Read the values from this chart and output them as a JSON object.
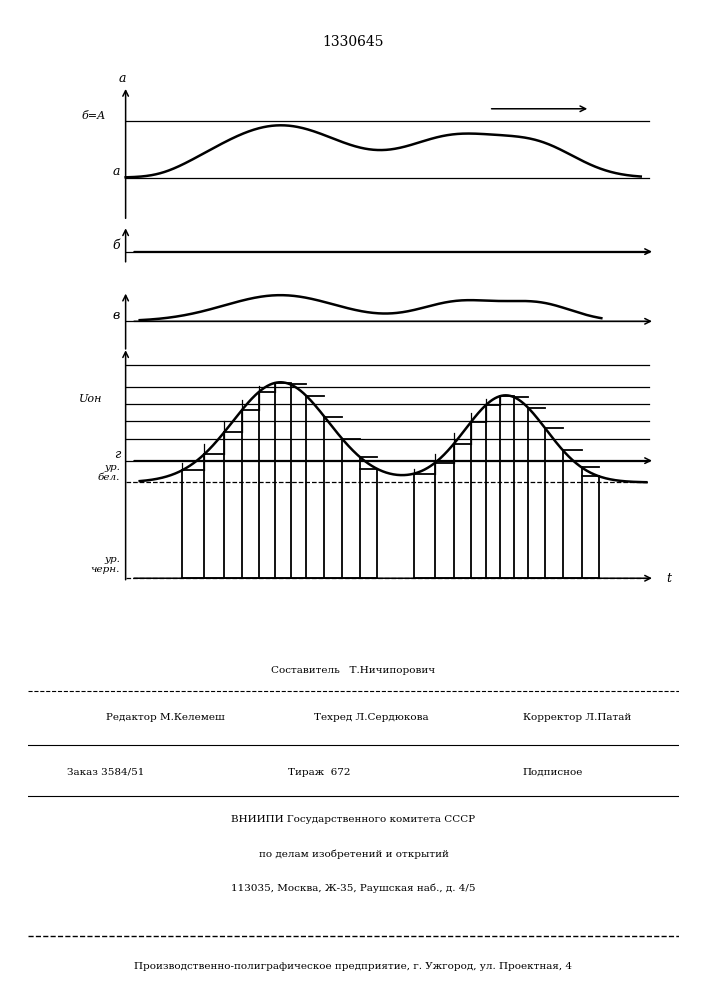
{
  "title": "1330645",
  "background_color": "#ffffff",
  "label_a_axis": "а",
  "label_BA": "б=A",
  "label_a_line": "а",
  "label_b": "б",
  "label_v": "в",
  "label_Uon": "Uон",
  "label_g": "г",
  "label_yr_bel": "ур.\nбел.",
  "label_yr_chern": "ур.\nчерн.",
  "label_t": "t",
  "footer_sestavitel": "Составитель   Т.Ничипорович",
  "footer_redaktor": "Редактор М.Келемеш",
  "footer_tehred": "Техред Л.Сердюкова",
  "footer_korrektor": "Корректор Л.Патай",
  "footer_zakaz": "Заказ 3584/51",
  "footer_tirazh": "Тираж  672",
  "footer_podpisnoe": "Подписное",
  "footer_vniipи": "ВНИИПИ Государственного комитета СССР",
  "footer_po_delam": "по делам изобретений и открытий",
  "footer_address": "113035, Москва, Ж-35, Раушская наб., д. 4/5",
  "footer_predpriyatie": "Производственно-полиграфическое предприятие, г. Ужгород, ул. Проектная, 4"
}
